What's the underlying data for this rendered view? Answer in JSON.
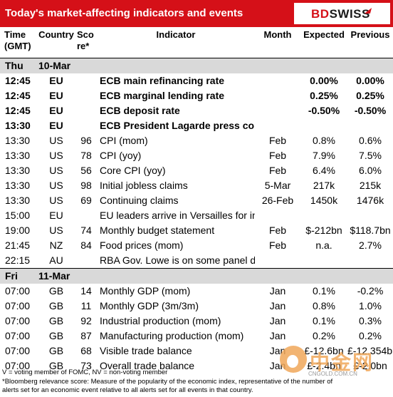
{
  "title": "Today's market-affecting indicators and events",
  "logo": {
    "bd": "BD",
    "swiss": "SWISS"
  },
  "headers": {
    "time": [
      "Time",
      "(GMT)"
    ],
    "country": "Country",
    "score": [
      "Sco",
      "re*"
    ],
    "indicator": "Indicator",
    "month": "Month",
    "expected": "Expected",
    "previous": "Previous"
  },
  "days": [
    {
      "day": "Thu",
      "date": "10-Mar",
      "rows": [
        {
          "time": "12:45",
          "country": "EU",
          "score": "",
          "indicator": "ECB main refinancing rate",
          "month": "",
          "expected": "0.00%",
          "previous": "0.00%",
          "bold": true
        },
        {
          "time": "12:45",
          "country": "EU",
          "score": "",
          "indicator": "ECB marginal lending rate",
          "month": "",
          "expected": "0.25%",
          "previous": "0.25%",
          "bold": true
        },
        {
          "time": "12:45",
          "country": "EU",
          "score": "",
          "indicator": "ECB deposit rate",
          "month": "",
          "expected": "-0.50%",
          "previous": "-0.50%",
          "bold": true
        },
        {
          "time": "13:30",
          "country": "EU",
          "score": "",
          "indicator": "ECB President Lagarde press conference",
          "month": "",
          "expected": "",
          "previous": "",
          "bold": true
        },
        {
          "time": "13:30",
          "country": "US",
          "score": "96",
          "indicator": "CPI (mom)",
          "month": "Feb",
          "expected": "0.8%",
          "previous": "0.6%",
          "bold": false
        },
        {
          "time": "13:30",
          "country": "US",
          "score": "78",
          "indicator": "CPI (yoy)",
          "month": "Feb",
          "expected": "7.9%",
          "previous": "7.5%",
          "bold": false
        },
        {
          "time": "13:30",
          "country": "US",
          "score": "56",
          "indicator": "Core CPI (yoy)",
          "month": "Feb",
          "expected": "6.4%",
          "previous": "6.0%",
          "bold": false
        },
        {
          "time": "13:30",
          "country": "US",
          "score": "98",
          "indicator": "Initial jobless claims",
          "month": "5-Mar",
          "expected": "217k",
          "previous": "215k",
          "bold": false
        },
        {
          "time": "13:30",
          "country": "US",
          "score": "69",
          "indicator": "Continuing claims",
          "month": "26-Feb",
          "expected": "1450k",
          "previous": "1476k",
          "bold": false
        },
        {
          "time": "15:00",
          "country": "EU",
          "score": "",
          "indicator": "EU leaders arrive in Versailles for informal summit",
          "month": "",
          "expected": "",
          "previous": "",
          "bold": false
        },
        {
          "time": "19:00",
          "country": "US",
          "score": "74",
          "indicator": "Monthly budget statement",
          "month": "Feb",
          "expected": "$-212bn",
          "previous": "$118.7bn",
          "bold": false
        },
        {
          "time": "21:45",
          "country": "NZ",
          "score": "84",
          "indicator": "Food prices (mom)",
          "month": "Feb",
          "expected": "n.a.",
          "previous": "2.7%",
          "bold": false
        },
        {
          "time": "22:15",
          "country": "AU",
          "score": "",
          "indicator": "RBA Gov. Lowe is on some panel discussion about banking",
          "month": "",
          "expected": "",
          "previous": "",
          "bold": false
        }
      ]
    },
    {
      "day": "Fri",
      "date": "11-Mar",
      "rows": [
        {
          "time": "07:00",
          "country": "GB",
          "score": "14",
          "indicator": "Monthly GDP (mom)",
          "month": "Jan",
          "expected": "0.1%",
          "previous": "-0.2%",
          "bold": false
        },
        {
          "time": "07:00",
          "country": "GB",
          "score": "11",
          "indicator": "Monthly GDP (3m/3m)",
          "month": "Jan",
          "expected": "0.8%",
          "previous": "1.0%",
          "bold": false
        },
        {
          "time": "07:00",
          "country": "GB",
          "score": "92",
          "indicator": "Industrial production (mom)",
          "month": "Jan",
          "expected": "0.1%",
          "previous": "0.3%",
          "bold": false
        },
        {
          "time": "07:00",
          "country": "GB",
          "score": "87",
          "indicator": "Manufacturing production (mom)",
          "month": "Jan",
          "expected": "0.2%",
          "previous": "0.2%",
          "bold": false
        },
        {
          "time": "07:00",
          "country": "GB",
          "score": "68",
          "indicator": "Visible trade balance",
          "month": "Jan",
          "expected": "£-12.6bn",
          "previous": "£-12.354bn",
          "bold": false
        },
        {
          "time": "07:00",
          "country": "GB",
          "score": "73",
          "indicator": "Overall trade balance",
          "month": "Jan",
          "expected": "£-2.4bn",
          "previous": "£-2.0bn",
          "bold": false
        }
      ]
    }
  ],
  "footnotes": [
    "V = voting member of FOMC, NV = non-voting member",
    "*Bloomberg relevance score:  Measure of the popularity of the economic index, representative of the number of",
    "alerts set for an economic event relative to all alerts set for all events in that country."
  ],
  "watermark": {
    "text": "中金网",
    "url": "CNGOLD.COM.CN"
  }
}
